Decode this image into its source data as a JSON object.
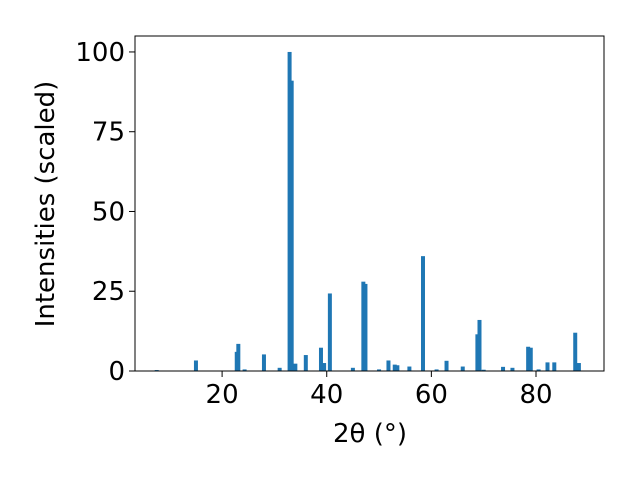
{
  "chart_data": {
    "type": "bar",
    "x_label": "2θ (°)",
    "y_label": "Intensities (scaled)",
    "color": "#1f77b4",
    "x": [
      7.5,
      15,
      22.8,
      23.1,
      24.3,
      28,
      31,
      32.9,
      33.3,
      34,
      36,
      38.9,
      39.5,
      40.6,
      45,
      47,
      47.4,
      50,
      51.8,
      53,
      53.5,
      55.8,
      58.4,
      61,
      62.9,
      66,
      68.8,
      69.2,
      70,
      73.7,
      75.5,
      78.5,
      79,
      80.5,
      82.2,
      83.5,
      87.5,
      88.2
    ],
    "values": [
      0.3,
      3.3,
      6,
      8.5,
      0.5,
      5.2,
      1,
      100,
      91,
      2.3,
      5,
      7.3,
      2.5,
      24.3,
      1,
      28,
      27.3,
      0.5,
      3.3,
      2,
      1.8,
      1.4,
      36,
      0.5,
      3.2,
      1.4,
      11.5,
      16,
      0.4,
      1.3,
      1,
      7.6,
      7.3,
      0.5,
      2.7,
      2.7,
      12,
      2.5
    ],
    "xlim": [
      3.35,
      93
    ],
    "ylim": [
      0,
      105
    ],
    "xticks": [
      20,
      40,
      60,
      80
    ],
    "yticks": [
      0,
      25,
      50,
      75,
      100
    ]
  }
}
